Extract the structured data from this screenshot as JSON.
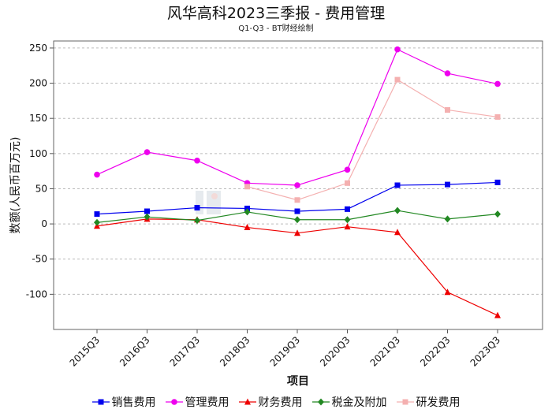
{
  "chart_data": {
    "type": "line",
    "title": "风华高科2023三季报 - 费用管理",
    "subtitle": "Q1-Q3 - BT财经绘制",
    "xlabel": "项目",
    "ylabel": "数额(人民币百万元)",
    "categories": [
      "2015Q3",
      "2016Q3",
      "2017Q3",
      "2018Q3",
      "2019Q3",
      "2020Q3",
      "2021Q3",
      "2022Q3",
      "2023Q3"
    ],
    "ylim": [
      -150,
      260
    ],
    "yticks": [
      -100,
      -50,
      0,
      50,
      100,
      150,
      200,
      250
    ],
    "grid": true,
    "legend_position": "bottom",
    "series": [
      {
        "name": "销售费用",
        "color": "#0000ee",
        "marker": "square",
        "values": [
          14,
          18,
          23,
          22,
          18,
          21,
          55,
          56,
          59
        ]
      },
      {
        "name": "管理费用",
        "color": "#ee00ee",
        "marker": "circle",
        "values": [
          70,
          102,
          90,
          58,
          55,
          77,
          248,
          214,
          199
        ]
      },
      {
        "name": "财务费用",
        "color": "#ee0000",
        "marker": "triangle",
        "values": [
          -3,
          7,
          6,
          -5,
          -13,
          -4,
          -12,
          -97,
          -130
        ]
      },
      {
        "name": "税金及附加",
        "color": "#228822",
        "marker": "diamond",
        "values": [
          2,
          10,
          5,
          17,
          6,
          6,
          19,
          7,
          14
        ]
      },
      {
        "name": "研发费用",
        "color": "#f4b0b0",
        "marker": "square",
        "values": [
          null,
          null,
          null,
          53,
          34,
          58,
          205,
          162,
          152
        ]
      }
    ]
  }
}
